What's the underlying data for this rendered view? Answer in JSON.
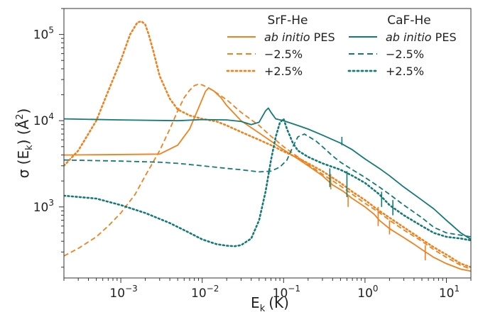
{
  "chart_data": {
    "type": "line",
    "xlabel_main": "E",
    "xlabel_sub": "k",
    "xlabel_unit": "(K)",
    "ylabel_parts": [
      "σ (E",
      "k",
      ") (Å",
      "2",
      ")"
    ],
    "x_scale": "log",
    "y_scale": "log",
    "xlim": [
      0.0002,
      20
    ],
    "ylim": [
      150,
      200000
    ],
    "x_ticks": [
      {
        "value": 0.001,
        "base": "10",
        "exp": "−3"
      },
      {
        "value": 0.01,
        "base": "10",
        "exp": "−2"
      },
      {
        "value": 0.1,
        "base": "10",
        "exp": "−1"
      },
      {
        "value": 1,
        "base": "10",
        "exp": "0"
      },
      {
        "value": 10,
        "base": "10",
        "exp": "1"
      }
    ],
    "y_ticks": [
      {
        "value": 1000,
        "base": "10",
        "exp": "3"
      },
      {
        "value": 10000,
        "base": "10",
        "exp": "4"
      },
      {
        "value": 100000,
        "base": "10",
        "exp": "5"
      }
    ],
    "grid": false,
    "legend": {
      "placement": "top-right",
      "groups": [
        {
          "title": "SrF-He",
          "color": "#f0821e",
          "entries": [
            {
              "label_italic": "ab initio",
              "label_rest": " PES",
              "style": "solid"
            },
            {
              "label_italic": "",
              "label_rest": "−2.5%",
              "style": "dashed"
            },
            {
              "label_italic": "",
              "label_rest": "+2.5%",
              "style": "dotted"
            }
          ]
        },
        {
          "title": "CaF-He",
          "color": "#137a78",
          "entries": [
            {
              "label_italic": "ab initio",
              "label_rest": " PES",
              "style": "solid"
            },
            {
              "label_italic": "",
              "label_rest": "−2.5%",
              "style": "dashed"
            },
            {
              "label_italic": "",
              "label_rest": "+2.5%",
              "style": "dotted"
            }
          ]
        }
      ]
    },
    "series": [
      {
        "name": "SrF-He ab initio PES",
        "color": "#f0821e",
        "style": "solid",
        "x": [
          0.0002,
          0.001,
          0.003,
          0.005,
          0.007,
          0.009,
          0.011,
          0.012,
          0.014,
          0.017,
          0.02,
          0.03,
          0.05,
          0.07,
          0.1,
          0.15,
          0.2,
          0.3,
          0.4,
          0.55,
          0.7,
          1.0,
          1.3,
          1.5,
          2,
          3,
          4,
          5,
          7,
          10,
          15,
          20
        ],
        "y": [
          4000,
          4050,
          4100,
          5200,
          8000,
          14000,
          22000,
          24000,
          22000,
          18500,
          15000,
          10000,
          7200,
          5800,
          4600,
          3600,
          3000,
          2300,
          1800,
          1500,
          1250,
          1000,
          820,
          700,
          560,
          440,
          370,
          320,
          260,
          220,
          190,
          180
        ]
      },
      {
        "name": "SrF-He −2.5%",
        "color": "#f0821e",
        "style": "dashed",
        "x": [
          0.0002,
          0.0003,
          0.0005,
          0.0007,
          0.001,
          0.0015,
          0.002,
          0.003,
          0.004,
          0.005,
          0.006,
          0.007,
          0.008,
          0.009,
          0.01,
          0.012,
          0.015,
          0.02,
          0.03,
          0.05,
          0.07,
          0.1,
          0.15,
          0.2,
          0.3,
          0.5,
          0.7,
          1,
          1.5,
          2,
          3,
          5,
          7,
          10,
          15,
          20
        ],
        "y": [
          270,
          330,
          450,
          600,
          850,
          1400,
          2300,
          4500,
          8000,
          13000,
          18500,
          22500,
          25500,
          26500,
          26000,
          24000,
          21000,
          17500,
          12500,
          8800,
          6600,
          5000,
          3800,
          3100,
          2400,
          1750,
          1400,
          1100,
          860,
          700,
          540,
          400,
          320,
          260,
          210,
          190
        ]
      },
      {
        "name": "SrF-He +2.5%",
        "color": "#f0821e",
        "style": "dotted",
        "x": [
          0.0002,
          0.0003,
          0.0005,
          0.0007,
          0.001,
          0.0013,
          0.0016,
          0.0018,
          0.002,
          0.0022,
          0.0025,
          0.003,
          0.004,
          0.005,
          0.007,
          0.01,
          0.015,
          0.02,
          0.03,
          0.05,
          0.07,
          0.1,
          0.15,
          0.2,
          0.3,
          0.5,
          0.7,
          1,
          1.5,
          2,
          3,
          5,
          7,
          10,
          15,
          20
        ],
        "y": [
          3000,
          4500,
          10000,
          22000,
          50000,
          100000,
          138000,
          142000,
          130000,
          100000,
          65000,
          33000,
          18000,
          13500,
          11500,
          10500,
          9800,
          8800,
          7400,
          6000,
          5200,
          4400,
          3700,
          3200,
          2600,
          1900,
          1500,
          1200,
          900,
          750,
          580,
          420,
          340,
          280,
          220,
          200
        ]
      },
      {
        "name": "CaF-He ab initio PES",
        "color": "#137a78",
        "style": "solid",
        "x": [
          0.0002,
          0.001,
          0.005,
          0.01,
          0.02,
          0.03,
          0.04,
          0.05,
          0.06,
          0.065,
          0.07,
          0.08,
          0.1,
          0.15,
          0.2,
          0.3,
          0.5,
          0.7,
          1,
          1.5,
          2,
          3,
          5,
          7,
          10,
          15,
          20
        ],
        "y": [
          10500,
          10200,
          10000,
          10300,
          10200,
          9800,
          9000,
          9600,
          13000,
          14000,
          12500,
          10500,
          10000,
          8800,
          8000,
          6800,
          5500,
          4600,
          3600,
          2800,
          2300,
          1700,
          1200,
          950,
          700,
          500,
          420
        ]
      },
      {
        "name": "CaF-He −2.5%",
        "color": "#137a78",
        "style": "dashed",
        "x": [
          0.0002,
          0.001,
          0.003,
          0.005,
          0.01,
          0.02,
          0.03,
          0.05,
          0.07,
          0.09,
          0.11,
          0.13,
          0.15,
          0.18,
          0.2,
          0.25,
          0.3,
          0.4,
          0.5,
          0.7,
          1,
          1.5,
          2,
          3,
          5,
          7,
          10,
          15,
          20
        ],
        "y": [
          3500,
          3400,
          3300,
          3200,
          3000,
          2800,
          2700,
          2550,
          2600,
          2900,
          3500,
          5000,
          6500,
          7000,
          6600,
          5800,
          5000,
          3900,
          3300,
          2700,
          2200,
          1700,
          1400,
          1050,
          750,
          580,
          500,
          470,
          450
        ]
      },
      {
        "name": "CaF-He +2.5%",
        "color": "#137a78",
        "style": "dotted",
        "x": [
          0.0002,
          0.0005,
          0.001,
          0.002,
          0.004,
          0.007,
          0.01,
          0.015,
          0.02,
          0.025,
          0.03,
          0.04,
          0.05,
          0.06,
          0.07,
          0.08,
          0.09,
          0.1,
          0.11,
          0.13,
          0.15,
          0.2,
          0.3,
          0.5,
          0.7,
          1,
          1.5,
          2,
          3,
          5,
          7,
          10,
          15,
          20
        ],
        "y": [
          1350,
          1250,
          1050,
          850,
          650,
          500,
          420,
          370,
          355,
          350,
          360,
          430,
          700,
          1500,
          3500,
          6500,
          9500,
          10500,
          8000,
          5500,
          4500,
          3800,
          3200,
          2700,
          2300,
          1900,
          1400,
          1050,
          800,
          600,
          500,
          450,
          430,
          410
        ]
      }
    ],
    "spikes": [
      {
        "series_color": "#f0821e",
        "x": 0.38,
        "y_top": 2400,
        "y_bottom": 1600
      },
      {
        "series_color": "#f0821e",
        "x": 0.62,
        "y_top": 1350,
        "y_bottom": 1000
      },
      {
        "series_color": "#f0821e",
        "x": 1.45,
        "y_top": 1000,
        "y_bottom": 600
      },
      {
        "series_color": "#f0821e",
        "x": 2.0,
        "y_top": 700,
        "y_bottom": 480
      },
      {
        "series_color": "#f0821e",
        "x": 5.5,
        "y_top": 360,
        "y_bottom": 240
      },
      {
        "series_color": "#137a78",
        "x": 0.52,
        "y_top": 6500,
        "y_bottom": 5200
      },
      {
        "series_color": "#137a78",
        "x": 0.37,
        "y_top": 2800,
        "y_bottom": 1700
      },
      {
        "series_color": "#137a78",
        "x": 0.6,
        "y_top": 2600,
        "y_bottom": 1300
      },
      {
        "series_color": "#137a78",
        "x": 1.6,
        "y_top": 1500,
        "y_bottom": 1000
      },
      {
        "series_color": "#137a78",
        "x": 2.2,
        "y_top": 1200,
        "y_bottom": 800
      }
    ]
  }
}
